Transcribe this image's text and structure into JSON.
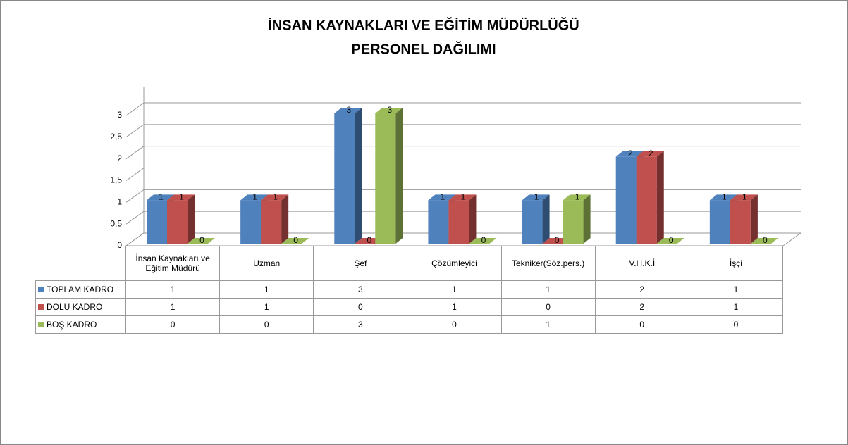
{
  "chart_data": {
    "type": "bar3d",
    "title": [
      "İNSAN KAYNAKLARI VE EĞİTİM MÜDÜRLÜĞÜ",
      "PERSONEL DAĞILIMI"
    ],
    "categories": [
      "İnsan Kaynakları ve Eğitim Müdürü",
      "Uzman",
      "Şef",
      "Çözümleyici",
      "Tekniker(Söz.pers.)",
      "V.H.K.İ",
      "İşçi"
    ],
    "series": [
      {
        "name": "TOPLAM KADRO",
        "color": "#4f81bd",
        "values": [
          1,
          1,
          3,
          1,
          1,
          2,
          1
        ]
      },
      {
        "name": "DOLU KADRO",
        "color": "#c0504d",
        "values": [
          1,
          1,
          0,
          1,
          0,
          2,
          1
        ]
      },
      {
        "name": "BOŞ KADRO",
        "color": "#9bbb59",
        "values": [
          0,
          0,
          3,
          0,
          1,
          0,
          0
        ]
      }
    ],
    "ylim": [
      0,
      3
    ],
    "yticks": [
      0,
      {
        "value": 0.5,
        "label": "0,5"
      },
      1,
      {
        "value": 1.5,
        "label": "1,5"
      },
      2,
      {
        "value": 2.5,
        "label": "2,5"
      },
      3
    ],
    "grid": true
  }
}
